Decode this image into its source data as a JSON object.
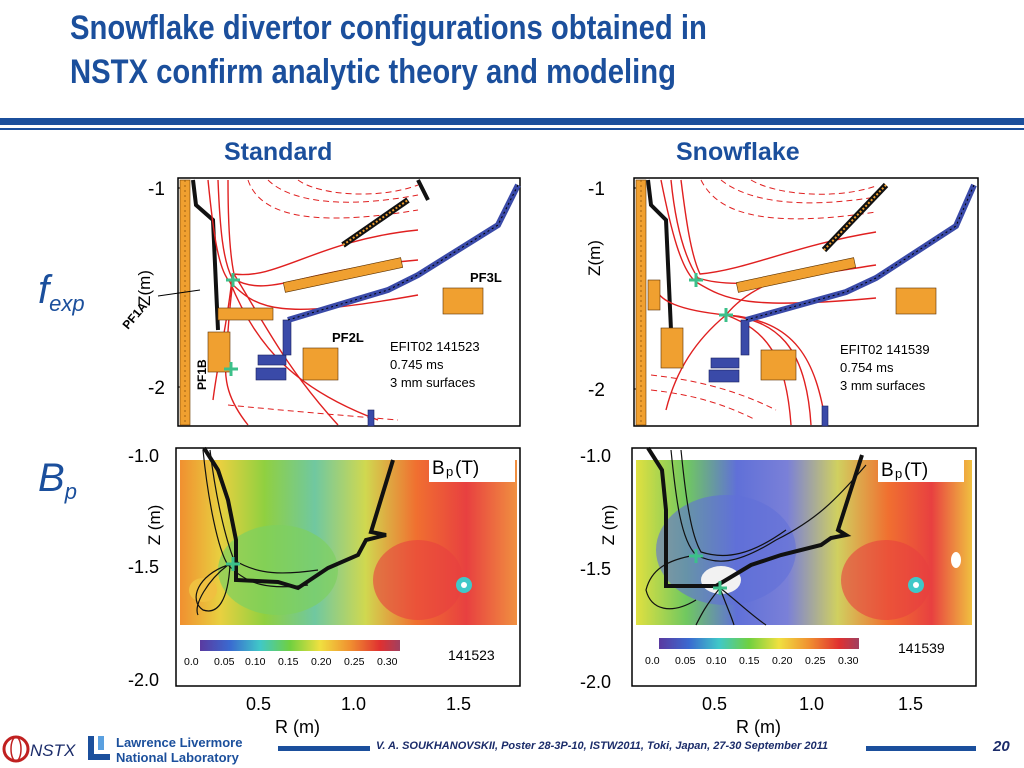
{
  "slide": {
    "title_line1": "Snowflake divertor configurations obtained in",
    "title_line2": "NSTX confirm analytic theory and modeling",
    "page_number": "20",
    "credit": "V. A. SOUKHANOVSKII, Poster 28-3P-10, ISTW2011, Toki, Japan, 27-30 September 2011"
  },
  "columns": {
    "left": "Standard",
    "right": "Snowflake"
  },
  "rows": {
    "top": {
      "main": "f",
      "sub": "exp"
    },
    "bottom": {
      "main": "B",
      "sub": "p"
    }
  },
  "flux_panels": {
    "axis_label": "Z(m)",
    "tick_top": "-1",
    "tick_bottom": "-2",
    "left": {
      "info_line1": "EFIT02 141523",
      "info_line2": "0.745 ms",
      "info_line3": "3 mm surfaces",
      "coil_labels": [
        "PF1A",
        "PF1B",
        "PF2L",
        "PF3L"
      ]
    },
    "right": {
      "info_line1": "EFIT02 141539",
      "info_line2": "0.754 ms",
      "info_line3": "3 mm surfaces"
    }
  },
  "bp_panels": {
    "legend_main": "B",
    "legend_sub": "p",
    "legend_unit": " (T)",
    "ylabel": "Z (m)",
    "xlabel": "R (m)",
    "y_ticks": [
      "-1.0",
      "-1.5",
      "-2.0"
    ],
    "x_ticks": [
      "0.5",
      "1.0",
      "1.5"
    ],
    "colorbar_ticks": [
      "0.0",
      "0.05",
      "0.10",
      "0.15",
      "0.20",
      "0.25",
      "0.30"
    ],
    "left_shot": "141523",
    "right_shot": "141539"
  },
  "logos": {
    "nstx": "NSTX",
    "llnl_line1": "Lawrence Livermore",
    "llnl_line2": "National Laboratory"
  },
  "colors": {
    "title_blue": "#1b4f9c",
    "coil_orange": "#f0a030",
    "coil_blue": "#3a4aa8",
    "flux_red": "#e02020"
  }
}
